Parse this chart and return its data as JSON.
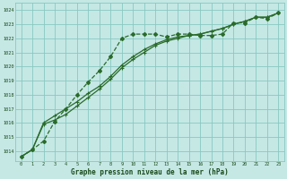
{
  "title": "Graphe pression niveau de la mer (hPa)",
  "bg_color": "#c5e8e5",
  "grid_color": "#88c8c0",
  "line_color": "#2a6b2a",
  "xlim": [
    -0.5,
    23.5
  ],
  "ylim": [
    1013.3,
    1024.5
  ],
  "yticks": [
    1014,
    1015,
    1016,
    1017,
    1018,
    1019,
    1020,
    1021,
    1022,
    1023,
    1024
  ],
  "xticks": [
    0,
    1,
    2,
    3,
    4,
    5,
    6,
    7,
    8,
    9,
    10,
    11,
    12,
    13,
    14,
    15,
    16,
    17,
    18,
    19,
    20,
    21,
    22,
    23
  ],
  "series1_x": [
    0,
    1,
    2,
    3,
    4,
    5,
    6,
    7,
    8,
    9,
    10,
    11,
    12,
    13,
    14,
    15,
    16,
    17,
    18,
    19,
    20,
    21,
    22,
    23
  ],
  "series1_y": [
    1013.6,
    1014.1,
    1014.7,
    1016.1,
    1017.0,
    1018.0,
    1018.9,
    1019.7,
    1020.7,
    1022.0,
    1022.3,
    1022.3,
    1022.3,
    1022.1,
    1022.3,
    1022.3,
    1022.2,
    1022.2,
    1022.3,
    1023.1,
    1023.1,
    1023.5,
    1023.4,
    1023.8
  ],
  "series2_x": [
    0,
    1,
    2,
    3,
    4,
    5,
    6,
    7,
    8,
    9,
    10,
    11,
    12,
    13,
    14,
    15,
    16,
    17,
    18,
    19,
    20,
    21,
    22,
    23
  ],
  "series2_y": [
    1013.6,
    1014.1,
    1015.9,
    1016.2,
    1016.6,
    1017.2,
    1017.8,
    1018.4,
    1019.1,
    1019.9,
    1020.5,
    1021.0,
    1021.5,
    1021.8,
    1022.0,
    1022.2,
    1022.3,
    1022.5,
    1022.7,
    1023.0,
    1023.2,
    1023.5,
    1023.5,
    1023.8
  ],
  "series3_x": [
    0,
    1,
    2,
    3,
    4,
    5,
    6,
    7,
    8,
    9,
    10,
    11,
    12,
    13,
    14,
    15,
    16,
    17,
    18,
    19,
    20,
    21,
    22,
    23
  ],
  "series3_y": [
    1013.6,
    1014.1,
    1016.0,
    1016.5,
    1017.0,
    1017.5,
    1018.1,
    1018.6,
    1019.3,
    1020.1,
    1020.7,
    1021.2,
    1021.6,
    1021.9,
    1022.1,
    1022.2,
    1022.3,
    1022.5,
    1022.7,
    1023.0,
    1023.2,
    1023.5,
    1023.5,
    1023.8
  ]
}
